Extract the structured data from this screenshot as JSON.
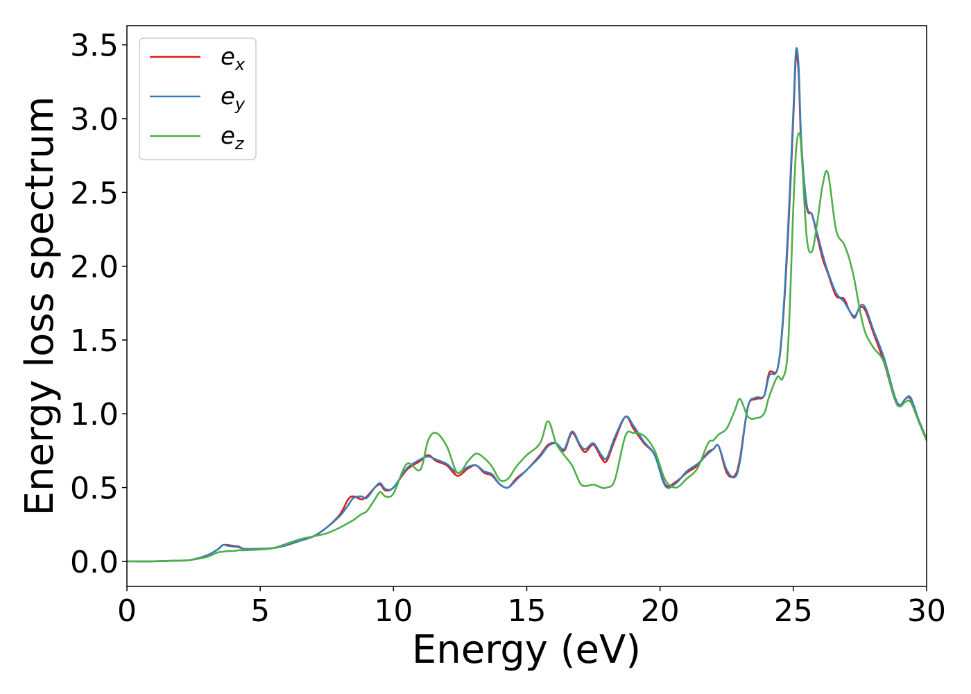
{
  "chart_data": {
    "type": "line",
    "title": "",
    "xlabel": "Energy (eV)",
    "ylabel": "Energy loss spectrum",
    "xlim": [
      0,
      30
    ],
    "ylim": [
      -0.17,
      3.63
    ],
    "xticks": [
      0,
      5,
      10,
      15,
      20,
      25,
      30
    ],
    "xtick_labels": [
      "0",
      "5",
      "10",
      "15",
      "20",
      "25",
      "30"
    ],
    "yticks": [
      0.0,
      0.5,
      1.0,
      1.5,
      2.0,
      2.5,
      3.0,
      3.5
    ],
    "ytick_labels": [
      "0.0",
      "0.5",
      "1.0",
      "1.5",
      "2.0",
      "2.5",
      "3.0",
      "3.5"
    ],
    "grid": false,
    "legend_position": "top-left",
    "series": [
      {
        "name": "e_x",
        "legend_base": "e",
        "legend_sub": "x",
        "color": "#e41a1c",
        "x": [
          0,
          1,
          2,
          2.4,
          3,
          3.4,
          3.6,
          3.8,
          4,
          4.2,
          4.4,
          5,
          5.5,
          6,
          6.5,
          7,
          7.5,
          8,
          8.3,
          8.5,
          8.8,
          9,
          9.3,
          9.5,
          9.7,
          10,
          10.5,
          11,
          11.3,
          11.6,
          12,
          12.4,
          12.8,
          13.1,
          13.4,
          13.7,
          14,
          14.3,
          14.6,
          15,
          15.5,
          15.8,
          16.1,
          16.4,
          16.7,
          17,
          17.2,
          17.5,
          17.8,
          18,
          18.3,
          18.7,
          19,
          19.4,
          19.8,
          20.2,
          20.6,
          21,
          21.4,
          21.8,
          22,
          22.2,
          22.5,
          22.8,
          23,
          23.3,
          23.6,
          23.9,
          24.1,
          24.4,
          24.6,
          24.8,
          25,
          25.1,
          25.2,
          25.3,
          25.5,
          25.7,
          25.9,
          26.1,
          26.3,
          26.6,
          26.9,
          27.1,
          27.3,
          27.5,
          27.7,
          28,
          28.4,
          28.8,
          29,
          29.2,
          29.4,
          29.7,
          30
        ],
        "y": [
          0.0,
          0.0,
          0.005,
          0.01,
          0.04,
          0.08,
          0.11,
          0.11,
          0.105,
          0.1,
          0.085,
          0.085,
          0.09,
          0.11,
          0.14,
          0.17,
          0.23,
          0.32,
          0.42,
          0.44,
          0.42,
          0.44,
          0.5,
          0.52,
          0.48,
          0.5,
          0.62,
          0.68,
          0.72,
          0.68,
          0.65,
          0.58,
          0.63,
          0.65,
          0.6,
          0.58,
          0.52,
          0.5,
          0.56,
          0.62,
          0.72,
          0.79,
          0.8,
          0.75,
          0.87,
          0.78,
          0.74,
          0.79,
          0.7,
          0.68,
          0.82,
          0.98,
          0.9,
          0.8,
          0.72,
          0.52,
          0.54,
          0.6,
          0.65,
          0.74,
          0.76,
          0.78,
          0.6,
          0.58,
          0.7,
          1.05,
          1.1,
          1.12,
          1.28,
          1.3,
          1.6,
          2.2,
          3.0,
          3.42,
          3.3,
          2.8,
          2.4,
          2.35,
          2.2,
          2.05,
          1.95,
          1.8,
          1.78,
          1.7,
          1.66,
          1.72,
          1.7,
          1.55,
          1.35,
          1.1,
          1.05,
          1.1,
          1.1,
          0.95,
          0.82
        ]
      },
      {
        "name": "e_y",
        "legend_base": "e",
        "legend_sub": "y",
        "color": "#377eb8",
        "x": [
          0,
          1,
          2,
          2.4,
          3,
          3.4,
          3.6,
          3.8,
          4,
          4.2,
          4.4,
          5,
          5.5,
          6,
          6.5,
          7,
          7.5,
          8,
          8.3,
          8.5,
          8.8,
          9,
          9.3,
          9.5,
          9.7,
          10,
          10.5,
          11,
          11.3,
          11.6,
          12,
          12.4,
          12.8,
          13.1,
          13.4,
          13.7,
          14,
          14.3,
          14.6,
          15,
          15.5,
          15.8,
          16.1,
          16.4,
          16.7,
          17,
          17.2,
          17.5,
          17.8,
          18,
          18.3,
          18.7,
          19,
          19.4,
          19.8,
          20.2,
          20.6,
          21,
          21.4,
          21.8,
          22,
          22.2,
          22.5,
          22.8,
          23,
          23.3,
          23.6,
          23.9,
          24.1,
          24.4,
          24.6,
          24.8,
          25,
          25.1,
          25.2,
          25.3,
          25.5,
          25.7,
          25.9,
          26.1,
          26.3,
          26.6,
          26.9,
          27.1,
          27.3,
          27.5,
          27.7,
          28,
          28.4,
          28.8,
          29,
          29.2,
          29.4,
          29.7,
          30
        ],
        "y": [
          0.0,
          0.0,
          0.005,
          0.01,
          0.04,
          0.08,
          0.11,
          0.105,
          0.1,
          0.095,
          0.085,
          0.085,
          0.09,
          0.11,
          0.14,
          0.17,
          0.23,
          0.31,
          0.38,
          0.43,
          0.44,
          0.43,
          0.5,
          0.53,
          0.49,
          0.5,
          0.63,
          0.69,
          0.71,
          0.69,
          0.66,
          0.6,
          0.64,
          0.65,
          0.61,
          0.59,
          0.52,
          0.5,
          0.55,
          0.62,
          0.71,
          0.78,
          0.8,
          0.76,
          0.88,
          0.79,
          0.76,
          0.8,
          0.72,
          0.7,
          0.84,
          0.98,
          0.92,
          0.81,
          0.72,
          0.51,
          0.53,
          0.61,
          0.66,
          0.73,
          0.76,
          0.78,
          0.62,
          0.57,
          0.68,
          1.05,
          1.11,
          1.12,
          1.26,
          1.3,
          1.62,
          2.25,
          3.05,
          3.46,
          3.35,
          2.85,
          2.42,
          2.35,
          2.22,
          2.08,
          1.96,
          1.82,
          1.76,
          1.7,
          1.65,
          1.73,
          1.72,
          1.57,
          1.38,
          1.12,
          1.06,
          1.1,
          1.11,
          0.96,
          0.83
        ]
      },
      {
        "name": "e_z",
        "legend_base": "e",
        "legend_sub": "z",
        "color": "#4daf4a",
        "x": [
          0,
          1,
          2,
          2.4,
          3,
          3.4,
          3.6,
          3.8,
          4,
          4.2,
          4.4,
          5,
          5.5,
          6,
          6.5,
          7,
          7.5,
          8,
          8.3,
          8.5,
          8.8,
          9,
          9.3,
          9.5,
          9.7,
          10,
          10.5,
          11,
          11.3,
          11.6,
          12,
          12.4,
          12.8,
          13.1,
          13.4,
          13.7,
          14,
          14.3,
          14.6,
          15,
          15.5,
          15.8,
          16.1,
          16.4,
          16.7,
          17,
          17.2,
          17.5,
          17.8,
          18,
          18.3,
          18.7,
          19,
          19.4,
          19.8,
          20.2,
          20.6,
          21,
          21.4,
          21.8,
          22,
          22.2,
          22.5,
          22.8,
          23,
          23.3,
          23.6,
          23.9,
          24.1,
          24.4,
          24.6,
          24.8,
          25,
          25.1,
          25.2,
          25.3,
          25.5,
          25.7,
          25.9,
          26.1,
          26.3,
          26.6,
          26.9,
          27.1,
          27.3,
          27.5,
          27.7,
          28,
          28.4,
          28.8,
          29,
          29.2,
          29.4,
          29.7,
          30
        ],
        "y": [
          0.0,
          0.0,
          0.005,
          0.01,
          0.03,
          0.06,
          0.065,
          0.07,
          0.07,
          0.075,
          0.075,
          0.08,
          0.09,
          0.12,
          0.15,
          0.17,
          0.19,
          0.23,
          0.26,
          0.28,
          0.32,
          0.34,
          0.42,
          0.47,
          0.44,
          0.46,
          0.66,
          0.62,
          0.82,
          0.87,
          0.78,
          0.6,
          0.68,
          0.73,
          0.7,
          0.64,
          0.55,
          0.56,
          0.64,
          0.72,
          0.8,
          0.95,
          0.8,
          0.72,
          0.65,
          0.53,
          0.51,
          0.52,
          0.5,
          0.5,
          0.55,
          0.85,
          0.87,
          0.85,
          0.75,
          0.55,
          0.5,
          0.56,
          0.63,
          0.8,
          0.82,
          0.86,
          0.9,
          1.02,
          1.1,
          0.98,
          0.97,
          1.0,
          1.12,
          1.25,
          1.24,
          1.45,
          2.4,
          2.78,
          2.9,
          2.8,
          2.2,
          2.1,
          2.3,
          2.55,
          2.63,
          2.25,
          2.15,
          2.05,
          1.9,
          1.7,
          1.55,
          1.45,
          1.35,
          1.1,
          1.05,
          1.08,
          1.08,
          0.95,
          0.82
        ]
      }
    ]
  }
}
